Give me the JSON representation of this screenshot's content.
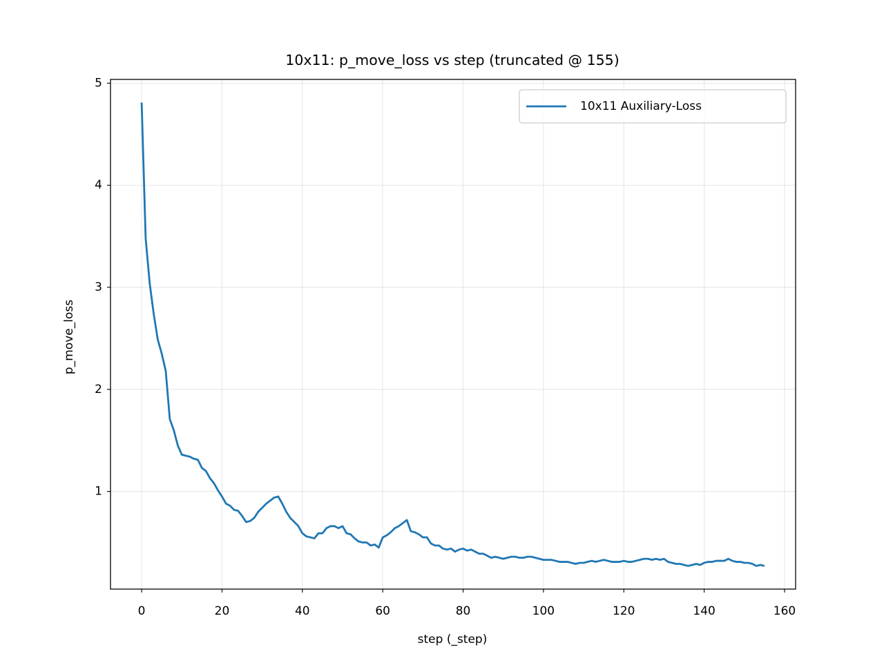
{
  "chart_data": {
    "type": "line",
    "title": "10x11: p_move_loss vs step (truncated @ 155)",
    "x_label": "step (_step)",
    "y_label": "p_move_loss",
    "x": [
      0,
      1,
      2,
      3,
      4,
      5,
      6,
      7,
      8,
      9,
      10,
      11,
      12,
      13,
      14,
      15,
      16,
      17,
      18,
      19,
      20,
      21,
      22,
      23,
      24,
      25,
      26,
      27,
      28,
      29,
      30,
      31,
      32,
      33,
      34,
      35,
      36,
      37,
      38,
      39,
      40,
      41,
      42,
      43,
      44,
      45,
      46,
      47,
      48,
      49,
      50,
      51,
      52,
      53,
      54,
      55,
      56,
      57,
      58,
      59,
      60,
      61,
      62,
      63,
      64,
      65,
      66,
      67,
      68,
      69,
      70,
      71,
      72,
      73,
      74,
      75,
      76,
      77,
      78,
      79,
      80,
      81,
      82,
      83,
      84,
      85,
      86,
      87,
      88,
      89,
      90,
      91,
      92,
      93,
      94,
      95,
      96,
      97,
      98,
      99,
      100,
      101,
      102,
      103,
      104,
      105,
      106,
      107,
      108,
      109,
      110,
      111,
      112,
      113,
      114,
      115,
      116,
      117,
      118,
      119,
      120,
      121,
      122,
      123,
      124,
      125,
      126,
      127,
      128,
      129,
      130,
      131,
      132,
      133,
      134,
      135,
      136,
      137,
      138,
      139,
      140,
      141,
      142,
      143,
      144,
      145,
      146,
      147,
      148,
      149,
      150,
      151,
      152,
      153,
      154,
      155
    ],
    "series": [
      {
        "name": "10x11 Auxiliary-Loss",
        "color": "#1f77b4",
        "values": [
          4.81,
          3.48,
          3.04,
          2.74,
          2.49,
          2.35,
          2.18,
          1.71,
          1.6,
          1.45,
          1.36,
          1.35,
          1.34,
          1.32,
          1.31,
          1.23,
          1.2,
          1.13,
          1.08,
          1.01,
          0.95,
          0.88,
          0.86,
          0.82,
          0.81,
          0.76,
          0.7,
          0.71,
          0.74,
          0.8,
          0.84,
          0.88,
          0.91,
          0.94,
          0.95,
          0.88,
          0.8,
          0.74,
          0.7,
          0.66,
          0.59,
          0.56,
          0.55,
          0.54,
          0.59,
          0.59,
          0.64,
          0.66,
          0.66,
          0.64,
          0.66,
          0.59,
          0.58,
          0.54,
          0.51,
          0.5,
          0.5,
          0.47,
          0.48,
          0.45,
          0.55,
          0.57,
          0.6,
          0.64,
          0.66,
          0.69,
          0.72,
          0.61,
          0.6,
          0.58,
          0.55,
          0.55,
          0.49,
          0.47,
          0.47,
          0.44,
          0.43,
          0.44,
          0.41,
          0.43,
          0.44,
          0.42,
          0.43,
          0.41,
          0.39,
          0.39,
          0.37,
          0.35,
          0.36,
          0.35,
          0.34,
          0.35,
          0.36,
          0.36,
          0.35,
          0.35,
          0.36,
          0.36,
          0.35,
          0.34,
          0.33,
          0.33,
          0.33,
          0.32,
          0.31,
          0.31,
          0.31,
          0.3,
          0.29,
          0.3,
          0.3,
          0.31,
          0.32,
          0.31,
          0.32,
          0.33,
          0.32,
          0.31,
          0.31,
          0.31,
          0.32,
          0.31,
          0.31,
          0.32,
          0.33,
          0.34,
          0.34,
          0.33,
          0.34,
          0.33,
          0.34,
          0.31,
          0.3,
          0.29,
          0.29,
          0.28,
          0.27,
          0.28,
          0.29,
          0.28,
          0.3,
          0.31,
          0.31,
          0.32,
          0.32,
          0.32,
          0.34,
          0.32,
          0.31,
          0.31,
          0.3,
          0.3,
          0.29,
          0.27,
          0.28,
          0.27
        ]
      }
    ],
    "xlim": [
      -7.75,
      162.75
    ],
    "xticks": [
      0,
      20,
      40,
      60,
      80,
      100,
      120,
      140,
      160
    ],
    "ylim": [
      0.043,
      5.037
    ],
    "yticks": [
      1,
      2,
      3,
      4,
      5
    ],
    "grid": true,
    "legend": "upper right"
  }
}
